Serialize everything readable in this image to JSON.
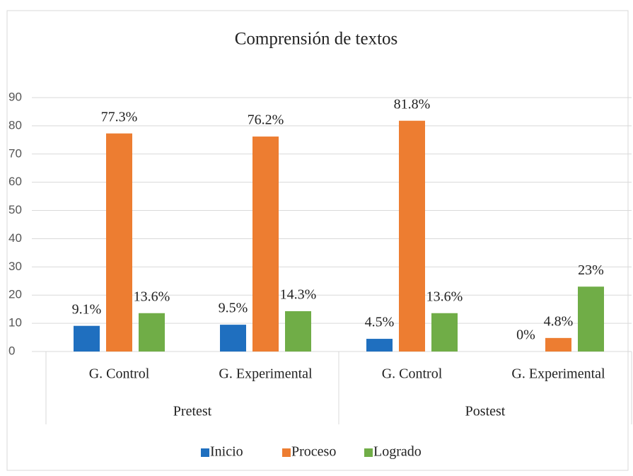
{
  "chart_data": {
    "type": "bar",
    "title": "Comprensión de textos",
    "categories": [
      "G. Control",
      "G. Experimental",
      "G. Control",
      "G. Experimental"
    ],
    "category_groups": [
      "Pretest",
      "Postest"
    ],
    "series": [
      {
        "name": "Inicio",
        "color": "#1f6fbf",
        "values": [
          9.1,
          9.5,
          4.5,
          0
        ],
        "value_labels": [
          "9.1%",
          "9.5%",
          "4.5%",
          "0%"
        ]
      },
      {
        "name": "Proceso",
        "color": "#ed7d31",
        "values": [
          77.3,
          76.2,
          81.8,
          4.8
        ],
        "value_labels": [
          "77.3%",
          "76.2%",
          "81.8%",
          "4.8%"
        ]
      },
      {
        "name": "Logrado",
        "color": "#70ad47",
        "values": [
          13.6,
          14.3,
          13.6,
          23
        ],
        "value_labels": [
          "13.6%",
          "14.3%",
          "13.6%",
          "23%"
        ]
      }
    ],
    "ylim": [
      0,
      90
    ],
    "yticks": [
      0,
      10,
      20,
      30,
      40,
      50,
      60,
      70,
      80,
      90
    ],
    "grid": true,
    "legend": "bottom"
  }
}
